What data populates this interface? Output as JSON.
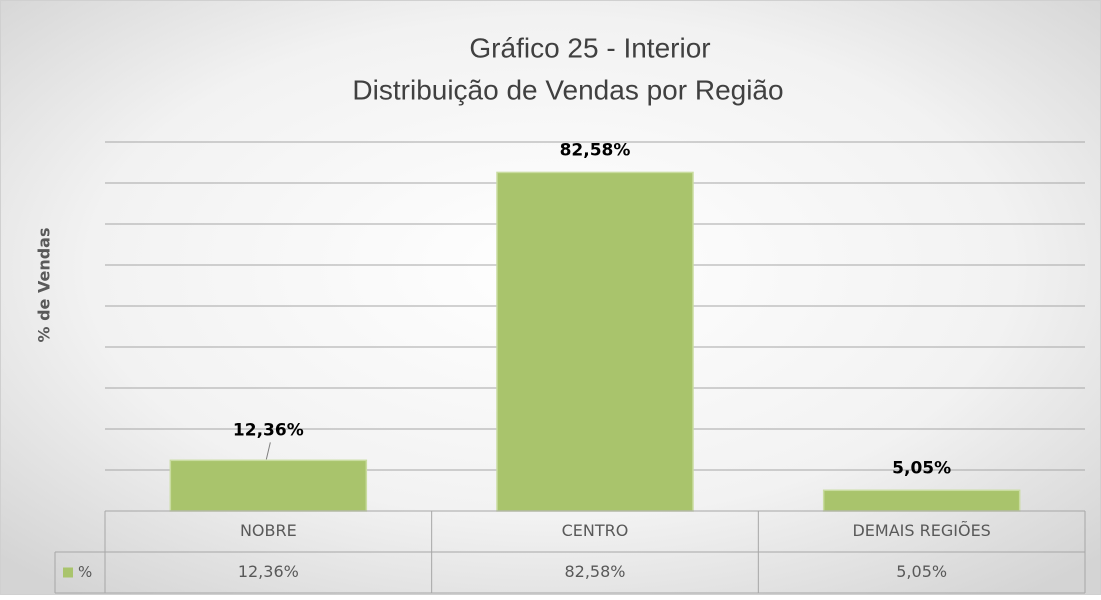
{
  "chart_data": {
    "type": "bar",
    "title": [
      "Gráfico 25 - Interior",
      "Distribuição de Vendas por Região"
    ],
    "y_axis_label": "% de Vendas",
    "categories": [
      "NOBRE",
      "CENTRO",
      "DEMAIS REGIÕES"
    ],
    "series": [
      {
        "name": "%",
        "color": "#a9c46c",
        "values": [
          12.36,
          82.58,
          5.05
        ],
        "value_labels": [
          "12,36%",
          "82,58%",
          "5,05%"
        ]
      }
    ],
    "ylim": [
      0,
      90
    ],
    "yticks": [
      0,
      10,
      20,
      30,
      40,
      50,
      60,
      70,
      80,
      90
    ],
    "grid": true,
    "data_table": true
  }
}
